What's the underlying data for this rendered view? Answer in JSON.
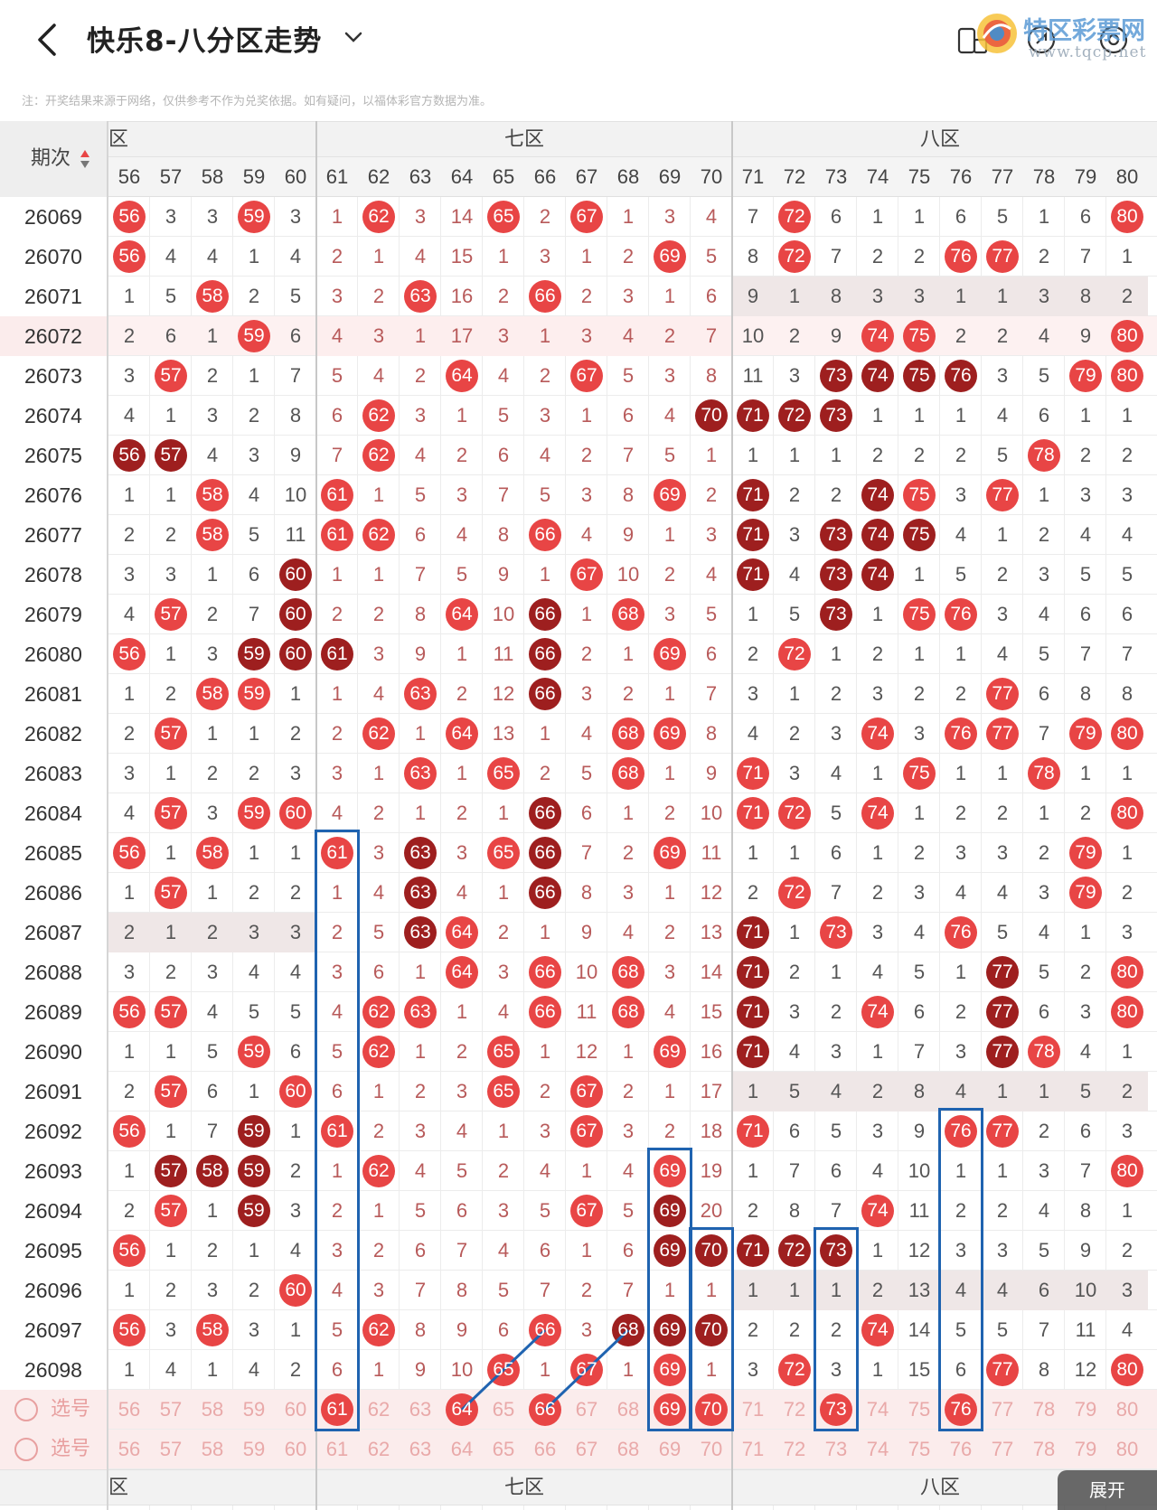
{
  "header": {
    "title": "快乐8-八分区走势",
    "watermark_text": "特区彩票网",
    "watermark_url": "www.tqcp.net"
  },
  "note": "注：开奖结果来源于网络，仅供参考不作为兑奖依据。如有疑问，以福体彩官方数据为准。",
  "table": {
    "issue_header": "期次",
    "zones": [
      {
        "label": "六区",
        "shown": "六区"
      },
      {
        "label": "七区",
        "shown": "七区"
      },
      {
        "label": "八区",
        "shown": "八区"
      }
    ],
    "columns": [
      "56",
      "57",
      "58",
      "59",
      "60",
      "61",
      "62",
      "63",
      "64",
      "65",
      "66",
      "67",
      "68",
      "69",
      "70",
      "71",
      "72",
      "73",
      "74",
      "75",
      "76",
      "77",
      "78",
      "79",
      "80"
    ],
    "rows": [
      {
        "issue": "26069",
        "cells": [
          "56",
          "3",
          "3",
          "59",
          "3",
          "1",
          "62",
          "3",
          "14",
          "65",
          "2",
          "67",
          "1",
          "3",
          "4",
          "7",
          "72",
          "6",
          "1",
          "1",
          "6",
          "5",
          "1",
          "6",
          "80"
        ]
      },
      {
        "issue": "26070",
        "cells": [
          "56",
          "4",
          "4",
          "1",
          "4",
          "2",
          "1",
          "4",
          "15",
          "1",
          "3",
          "1",
          "2",
          "69",
          "5",
          "8",
          "72",
          "7",
          "2",
          "2",
          "76",
          "77",
          "2",
          "7",
          "1"
        ]
      },
      {
        "issue": "26071",
        "cells": [
          "1",
          "5",
          "58",
          "2",
          "5",
          "3",
          "2",
          "63",
          "16",
          "2",
          "66",
          "2",
          "3",
          "1",
          "6",
          "9",
          "1",
          "8",
          "3",
          "3",
          "1",
          "1",
          "3",
          "8",
          "2"
        ]
      },
      {
        "issue": "26072",
        "cells": [
          "2",
          "6",
          "1",
          "59",
          "6",
          "4",
          "3",
          "1",
          "17",
          "3",
          "1",
          "3",
          "4",
          "2",
          "7",
          "10",
          "2",
          "9",
          "74",
          "75",
          "2",
          "2",
          "4",
          "9",
          "80"
        ]
      },
      {
        "issue": "26073",
        "cells": [
          "3",
          "57",
          "2",
          "1",
          "7",
          "5",
          "4",
          "2",
          "64",
          "4",
          "2",
          "67",
          "5",
          "3",
          "8",
          "11",
          "3",
          "73",
          "74",
          "75",
          "76",
          "3",
          "5",
          "79",
          "80"
        ]
      },
      {
        "issue": "26074",
        "cells": [
          "4",
          "1",
          "3",
          "2",
          "8",
          "6",
          "62",
          "3",
          "1",
          "5",
          "3",
          "1",
          "6",
          "4",
          "70",
          "71",
          "72",
          "73",
          "1",
          "1",
          "1",
          "4",
          "6",
          "1",
          "1"
        ]
      },
      {
        "issue": "26075",
        "cells": [
          "56",
          "57",
          "4",
          "3",
          "9",
          "7",
          "62",
          "4",
          "2",
          "6",
          "4",
          "2",
          "7",
          "5",
          "1",
          "1",
          "1",
          "1",
          "2",
          "2",
          "2",
          "5",
          "78",
          "2",
          "2"
        ]
      },
      {
        "issue": "26076",
        "cells": [
          "1",
          "1",
          "58",
          "4",
          "10",
          "61",
          "1",
          "5",
          "3",
          "7",
          "5",
          "3",
          "8",
          "69",
          "2",
          "71",
          "2",
          "2",
          "74",
          "75",
          "3",
          "77",
          "1",
          "3",
          "3"
        ]
      },
      {
        "issue": "26077",
        "cells": [
          "2",
          "2",
          "58",
          "5",
          "11",
          "61",
          "62",
          "6",
          "4",
          "8",
          "66",
          "4",
          "9",
          "1",
          "3",
          "71",
          "3",
          "73",
          "74",
          "75",
          "4",
          "1",
          "2",
          "4",
          "4"
        ]
      },
      {
        "issue": "26078",
        "cells": [
          "3",
          "3",
          "1",
          "6",
          "60",
          "1",
          "1",
          "7",
          "5",
          "9",
          "1",
          "67",
          "10",
          "2",
          "4",
          "71",
          "4",
          "73",
          "74",
          "1",
          "5",
          "2",
          "3",
          "5",
          "5"
        ]
      },
      {
        "issue": "26079",
        "cells": [
          "4",
          "57",
          "2",
          "7",
          "60",
          "2",
          "2",
          "8",
          "64",
          "10",
          "66",
          "1",
          "68",
          "3",
          "5",
          "1",
          "5",
          "73",
          "1",
          "75",
          "76",
          "3",
          "4",
          "6",
          "6"
        ]
      },
      {
        "issue": "26080",
        "cells": [
          "56",
          "1",
          "3",
          "59",
          "60",
          "61",
          "3",
          "9",
          "1",
          "11",
          "66",
          "2",
          "1",
          "69",
          "6",
          "2",
          "72",
          "1",
          "2",
          "1",
          "1",
          "4",
          "5",
          "7",
          "7"
        ]
      },
      {
        "issue": "26081",
        "cells": [
          "1",
          "2",
          "58",
          "59",
          "1",
          "1",
          "4",
          "63",
          "2",
          "12",
          "66",
          "3",
          "2",
          "1",
          "7",
          "3",
          "1",
          "2",
          "3",
          "2",
          "2",
          "77",
          "6",
          "8",
          "8"
        ]
      },
      {
        "issue": "26082",
        "cells": [
          "2",
          "57",
          "1",
          "1",
          "2",
          "2",
          "62",
          "1",
          "64",
          "13",
          "1",
          "4",
          "68",
          "69",
          "8",
          "4",
          "2",
          "3",
          "74",
          "3",
          "76",
          "77",
          "7",
          "79",
          "80"
        ]
      },
      {
        "issue": "26083",
        "cells": [
          "3",
          "1",
          "2",
          "2",
          "3",
          "3",
          "1",
          "63",
          "1",
          "65",
          "2",
          "5",
          "68",
          "1",
          "9",
          "71",
          "3",
          "4",
          "1",
          "75",
          "1",
          "1",
          "78",
          "1",
          "1"
        ]
      },
      {
        "issue": "26084",
        "cells": [
          "4",
          "57",
          "3",
          "59",
          "60",
          "4",
          "2",
          "1",
          "2",
          "1",
          "66",
          "6",
          "1",
          "2",
          "10",
          "71",
          "72",
          "5",
          "74",
          "1",
          "2",
          "2",
          "1",
          "2",
          "80"
        ]
      },
      {
        "issue": "26085",
        "cells": [
          "56",
          "1",
          "58",
          "1",
          "1",
          "61",
          "3",
          "63",
          "3",
          "65",
          "66",
          "7",
          "2",
          "69",
          "11",
          "1",
          "1",
          "6",
          "1",
          "2",
          "3",
          "3",
          "2",
          "79",
          "1"
        ]
      },
      {
        "issue": "26086",
        "cells": [
          "1",
          "57",
          "1",
          "2",
          "2",
          "1",
          "4",
          "63",
          "4",
          "1",
          "66",
          "8",
          "3",
          "1",
          "12",
          "2",
          "72",
          "7",
          "2",
          "3",
          "4",
          "4",
          "3",
          "79",
          "2"
        ]
      },
      {
        "issue": "26087",
        "cells": [
          "2",
          "1",
          "2",
          "3",
          "3",
          "2",
          "5",
          "63",
          "64",
          "2",
          "1",
          "9",
          "4",
          "2",
          "13",
          "71",
          "1",
          "73",
          "3",
          "4",
          "76",
          "5",
          "4",
          "1",
          "3"
        ]
      },
      {
        "issue": "26088",
        "cells": [
          "3",
          "2",
          "3",
          "4",
          "4",
          "3",
          "6",
          "1",
          "64",
          "3",
          "66",
          "10",
          "68",
          "3",
          "14",
          "71",
          "2",
          "1",
          "4",
          "5",
          "1",
          "77",
          "5",
          "2",
          "80"
        ]
      },
      {
        "issue": "26089",
        "cells": [
          "56",
          "57",
          "4",
          "5",
          "5",
          "4",
          "62",
          "63",
          "1",
          "4",
          "66",
          "11",
          "68",
          "4",
          "15",
          "71",
          "3",
          "2",
          "74",
          "6",
          "2",
          "77",
          "6",
          "3",
          "80"
        ]
      },
      {
        "issue": "26090",
        "cells": [
          "1",
          "1",
          "5",
          "59",
          "6",
          "5",
          "62",
          "1",
          "2",
          "65",
          "1",
          "12",
          "1",
          "69",
          "16",
          "71",
          "4",
          "3",
          "1",
          "7",
          "3",
          "77",
          "78",
          "4",
          "1"
        ]
      },
      {
        "issue": "26091",
        "cells": [
          "2",
          "57",
          "6",
          "1",
          "60",
          "6",
          "1",
          "2",
          "3",
          "65",
          "2",
          "67",
          "2",
          "1",
          "17",
          "1",
          "5",
          "4",
          "2",
          "8",
          "4",
          "1",
          "1",
          "5",
          "2"
        ]
      },
      {
        "issue": "26092",
        "cells": [
          "56",
          "1",
          "7",
          "59",
          "1",
          "61",
          "2",
          "3",
          "4",
          "1",
          "3",
          "67",
          "3",
          "2",
          "18",
          "71",
          "6",
          "5",
          "3",
          "9",
          "76",
          "77",
          "2",
          "6",
          "3"
        ]
      },
      {
        "issue": "26093",
        "cells": [
          "1",
          "57",
          "58",
          "59",
          "2",
          "1",
          "62",
          "4",
          "5",
          "2",
          "4",
          "1",
          "4",
          "69",
          "19",
          "1",
          "7",
          "6",
          "4",
          "10",
          "1",
          "1",
          "3",
          "7",
          "80"
        ]
      },
      {
        "issue": "26094",
        "cells": [
          "2",
          "57",
          "1",
          "59",
          "3",
          "2",
          "1",
          "5",
          "6",
          "3",
          "5",
          "67",
          "5",
          "69",
          "20",
          "2",
          "8",
          "7",
          "74",
          "11",
          "2",
          "2",
          "4",
          "8",
          "1"
        ]
      },
      {
        "issue": "26095",
        "cells": [
          "56",
          "1",
          "2",
          "1",
          "4",
          "3",
          "2",
          "6",
          "7",
          "4",
          "6",
          "1",
          "6",
          "69",
          "70",
          "71",
          "72",
          "73",
          "1",
          "12",
          "3",
          "3",
          "5",
          "9",
          "2"
        ]
      },
      {
        "issue": "26096",
        "cells": [
          "1",
          "2",
          "3",
          "2",
          "60",
          "4",
          "3",
          "7",
          "8",
          "5",
          "7",
          "2",
          "7",
          "1",
          "1",
          "1",
          "1",
          "1",
          "2",
          "13",
          "4",
          "4",
          "6",
          "10",
          "3"
        ]
      },
      {
        "issue": "26097",
        "cells": [
          "56",
          "3",
          "58",
          "3",
          "1",
          "5",
          "62",
          "8",
          "9",
          "6",
          "66",
          "3",
          "68",
          "69",
          "70",
          "2",
          "2",
          "2",
          "74",
          "14",
          "5",
          "5",
          "7",
          "11",
          "4"
        ]
      },
      {
        "issue": "26098",
        "cells": [
          "1",
          "4",
          "1",
          "4",
          "2",
          "6",
          "1",
          "9",
          "10",
          "65",
          "1",
          "67",
          "1",
          "69",
          "1",
          "3",
          "72",
          "3",
          "1",
          "15",
          "6",
          "77",
          "8",
          "12",
          "80"
        ]
      }
    ],
    "select_rows": [
      {
        "label": "选号",
        "picked": [
          "61",
          "64",
          "66",
          "69",
          "70",
          "73",
          "76"
        ]
      },
      {
        "label": "选号",
        "picked": []
      }
    ],
    "expand_label": "展开"
  }
}
